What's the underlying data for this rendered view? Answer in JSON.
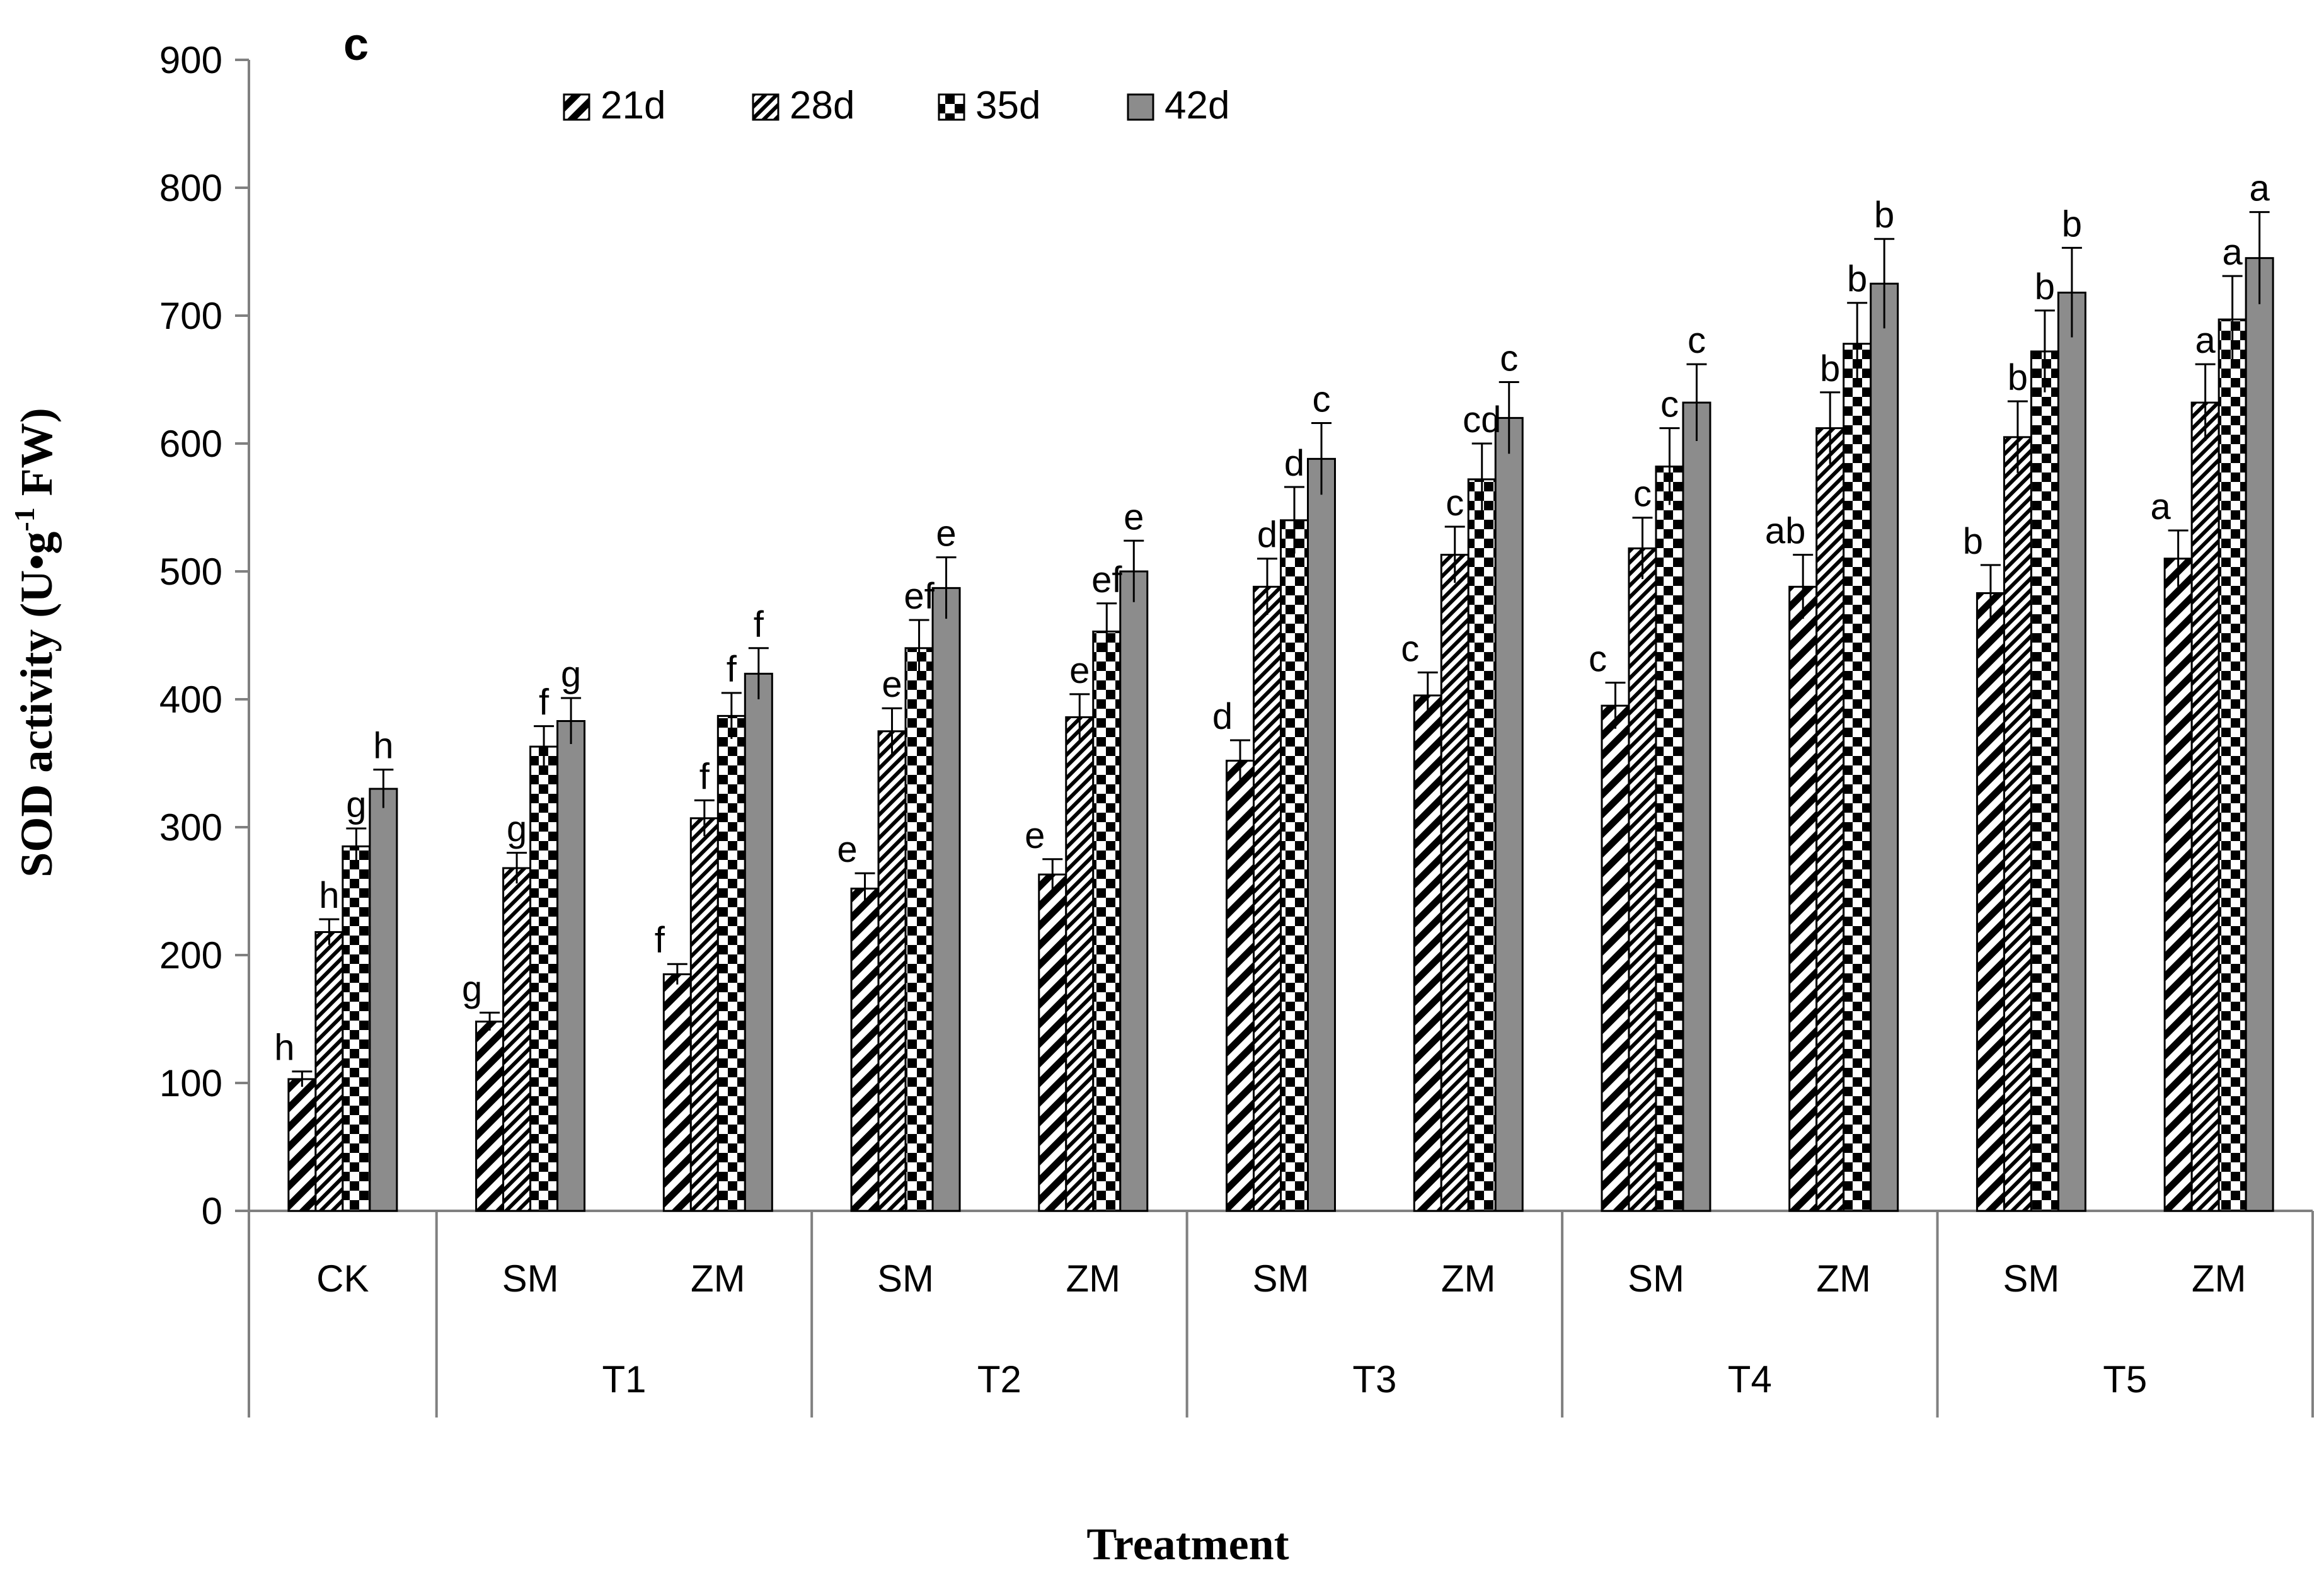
{
  "chart_data": {
    "type": "bar",
    "panel_label": "c",
    "ylabel": "SOD activity (U•g",
    "ylabel_sup": "-1",
    "ylabel_tail": " FW)",
    "xlabel": "Treatment",
    "ylim": [
      0,
      900
    ],
    "yticks": [
      0,
      100,
      200,
      300,
      400,
      500,
      600,
      700,
      800,
      900
    ],
    "legend_position": "top",
    "categories": [
      "CK",
      "SM",
      "ZM",
      "SM",
      "ZM",
      "SM",
      "ZM",
      "SM",
      "ZM",
      "SM",
      "ZM"
    ],
    "groups": [
      {
        "label": "",
        "span": 1
      },
      {
        "label": "T1",
        "span": 2
      },
      {
        "label": "T2",
        "span": 2
      },
      {
        "label": "T3",
        "span": 2
      },
      {
        "label": "T4",
        "span": 2
      },
      {
        "label": "T5",
        "span": 2
      }
    ],
    "series": [
      {
        "name": "21d",
        "pattern": "diagonal-stripes",
        "values": [
          103,
          148,
          185,
          252,
          263,
          352,
          403,
          395,
          488,
          483,
          510
        ],
        "errors": [
          6,
          7,
          8,
          12,
          12,
          16,
          18,
          18,
          25,
          22,
          22
        ],
        "letters": [
          "h",
          "g",
          "f",
          "e",
          "e",
          "d",
          "c",
          "c",
          "ab",
          "b",
          "a"
        ]
      },
      {
        "name": "28d",
        "pattern": "dense-diagonal",
        "values": [
          218,
          268,
          307,
          375,
          386,
          488,
          513,
          518,
          612,
          605,
          632
        ],
        "errors": [
          10,
          12,
          14,
          18,
          18,
          22,
          22,
          24,
          28,
          28,
          30
        ],
        "letters": [
          "h",
          "g",
          "f",
          "e",
          "e",
          "d",
          "c",
          "c",
          "b",
          "b",
          "a"
        ]
      },
      {
        "name": "35d",
        "pattern": "checker",
        "values": [
          285,
          363,
          387,
          440,
          453,
          540,
          572,
          582,
          678,
          672,
          697
        ],
        "errors": [
          14,
          16,
          18,
          22,
          22,
          26,
          28,
          30,
          32,
          32,
          34
        ],
        "letters": [
          "g",
          "f",
          "f",
          "ef",
          "ef",
          "d",
          "cd",
          "c",
          "b",
          "b",
          "a"
        ]
      },
      {
        "name": "42d",
        "pattern": "solid-gray",
        "values": [
          330,
          383,
          420,
          487,
          500,
          588,
          620,
          632,
          725,
          718,
          745
        ],
        "errors": [
          15,
          18,
          20,
          24,
          24,
          28,
          28,
          30,
          35,
          35,
          36
        ],
        "letters": [
          "h",
          "g",
          "f",
          "e",
          "e",
          "c",
          "c",
          "c",
          "b",
          "b",
          "a"
        ]
      }
    ]
  }
}
